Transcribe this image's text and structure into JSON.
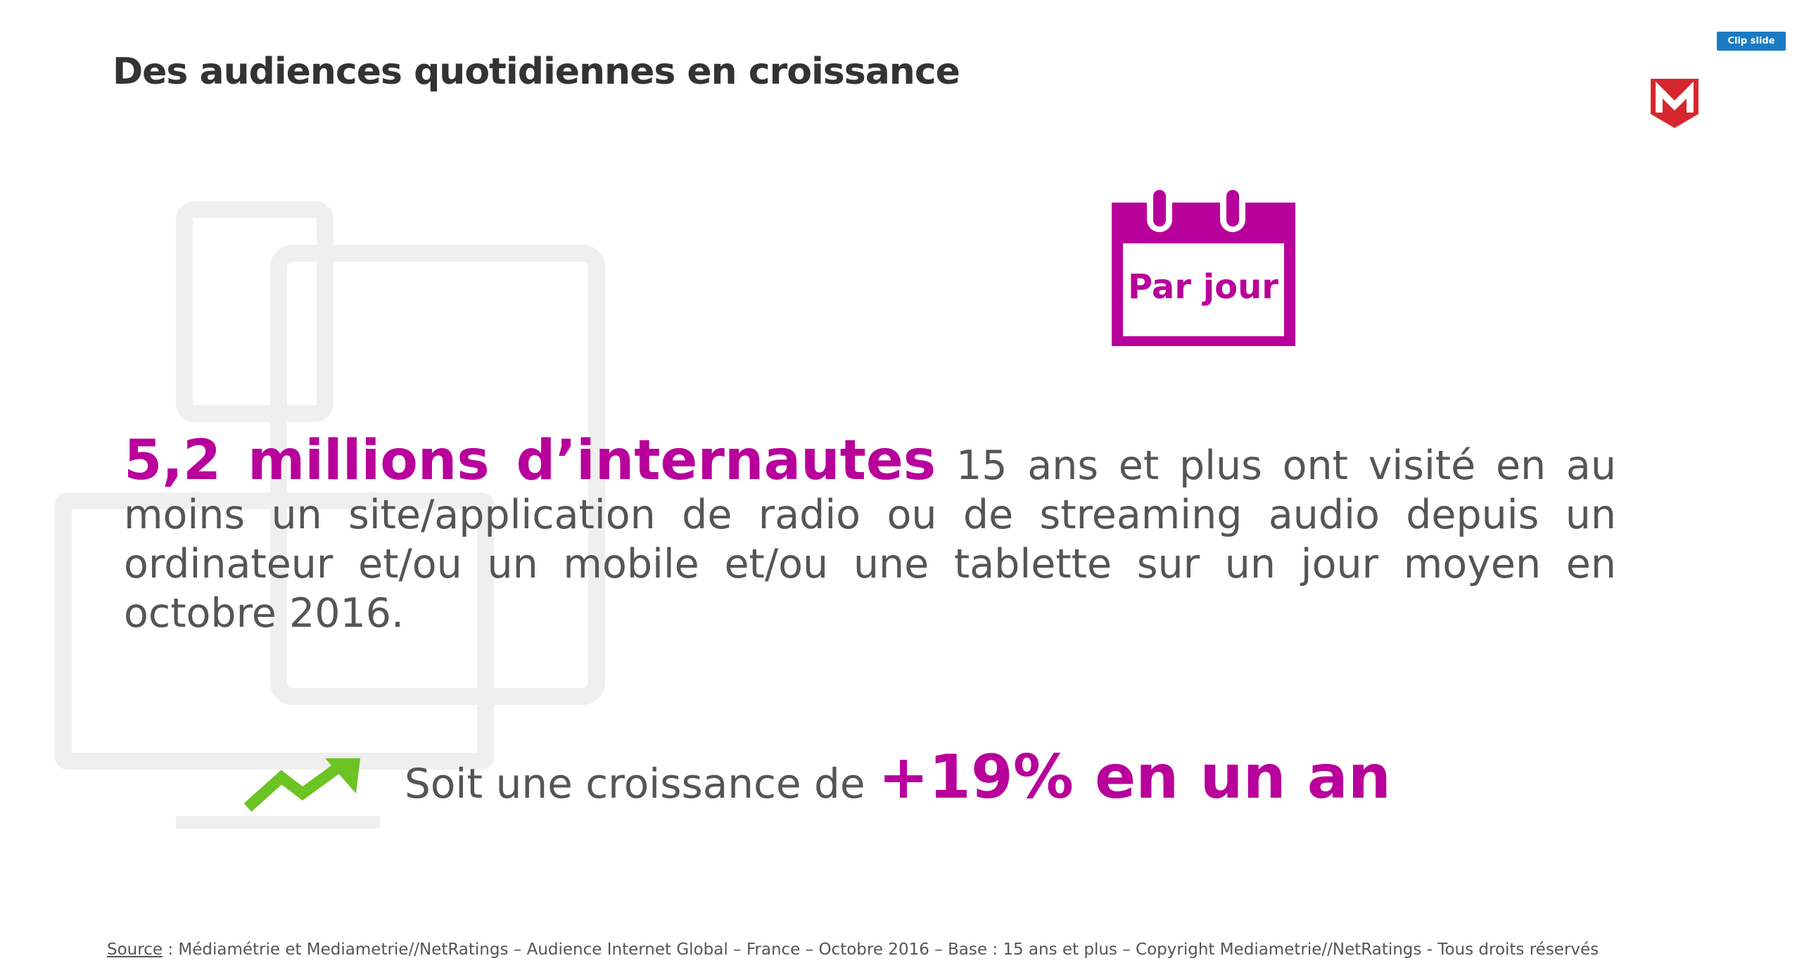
{
  "header": {
    "title": "Des audiences quotidiennes en croissance",
    "button": "Clip slide"
  },
  "calendar": {
    "label": "Par jour"
  },
  "body": {
    "highlight": "5,2 millions d’internautes",
    "text": "15 ans et plus ont visité en au moins un site/application de radio ou de streaming audio depuis un ordinateur et/ou un mobile et/ou une tablette sur un jour moyen en octobre 2016."
  },
  "growth": {
    "prefix": "Soit une croissance de",
    "highlight": "+19% en un an"
  },
  "source": {
    "label": "Source",
    "text": ": Médiamétrie et Mediametrie//NetRatings – Audience Internet Global – France – Octobre 2016 – Base : 15 ans et plus – Copyright Mediametrie//NetRatings - Tous droits réservés"
  }
}
